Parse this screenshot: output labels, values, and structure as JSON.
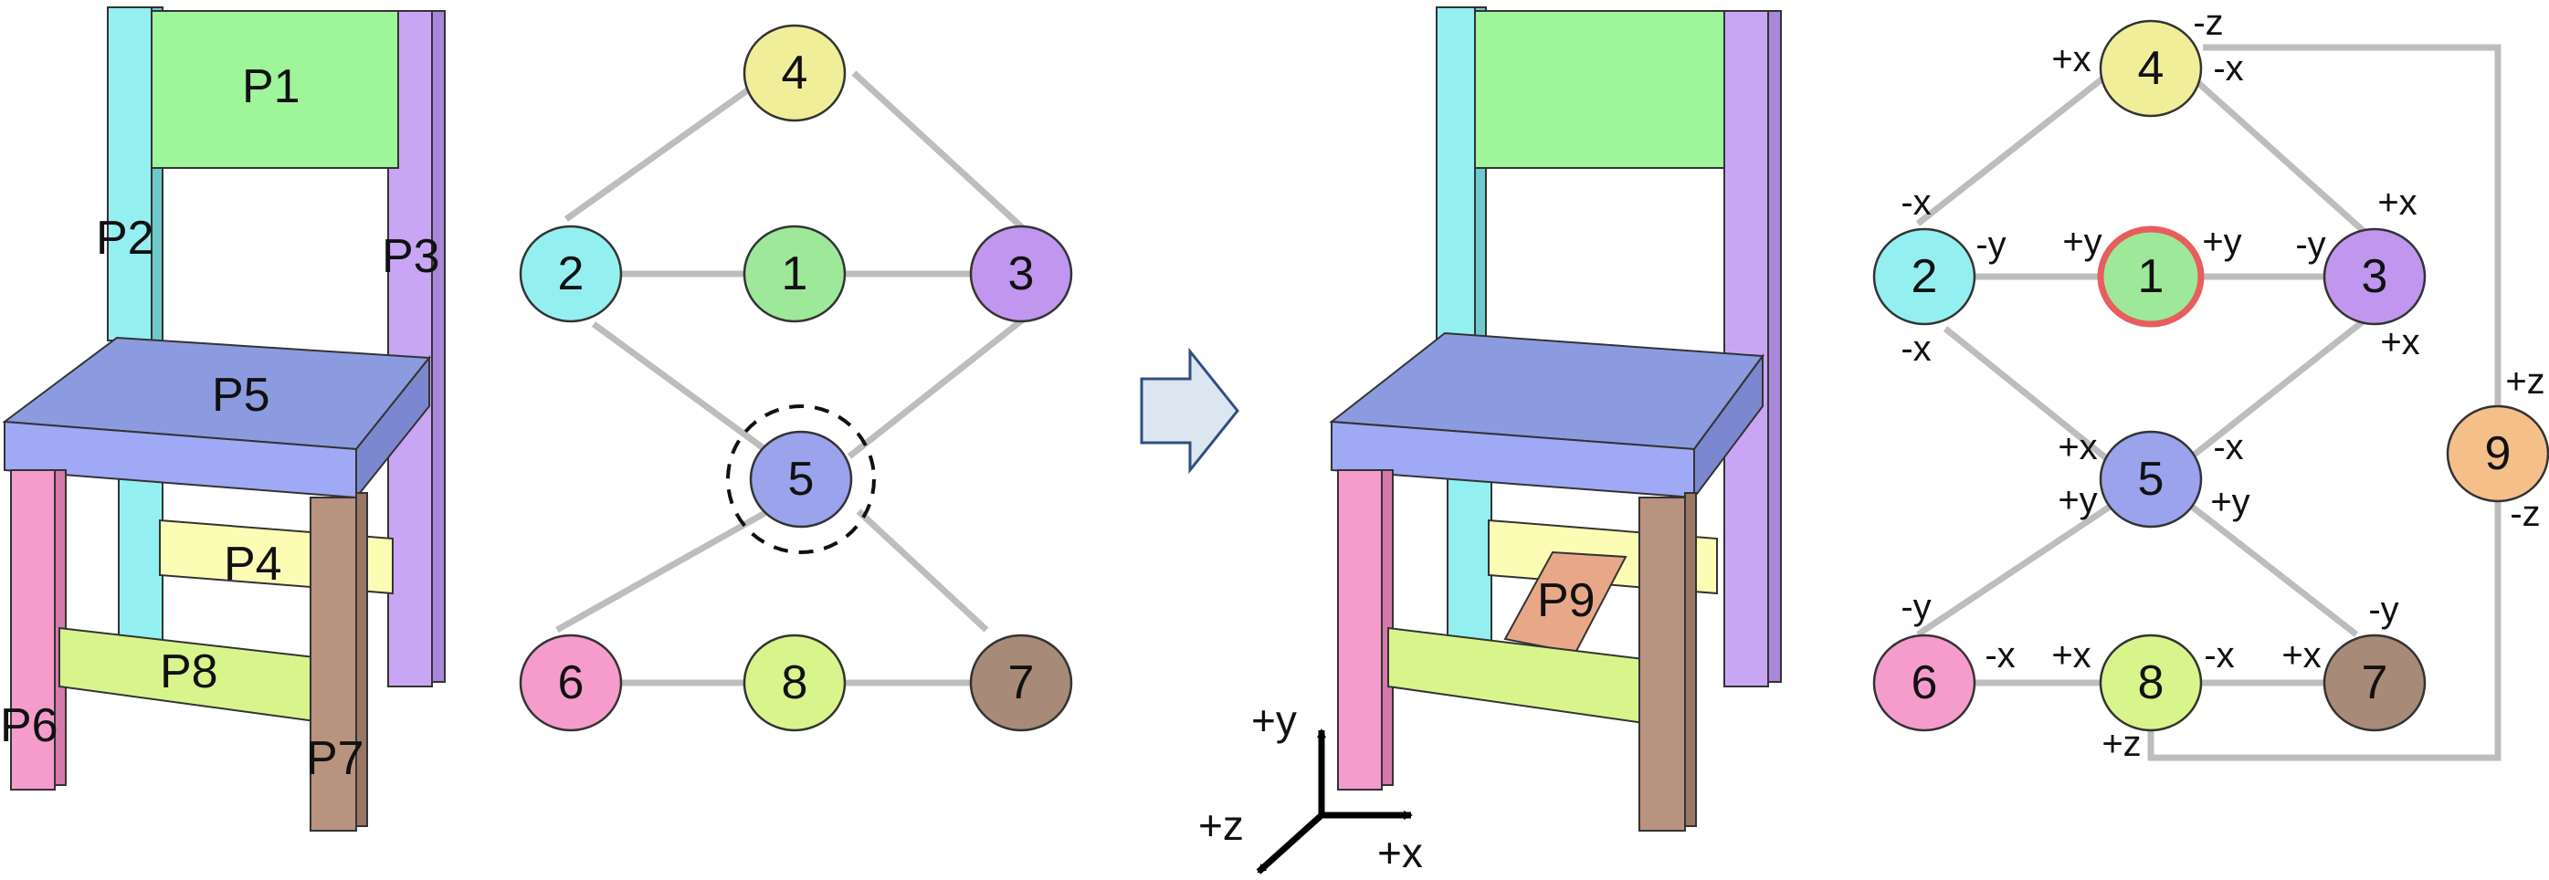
{
  "panel_original_chair": {
    "part_labels": [
      "P1",
      "P2",
      "P3",
      "P4",
      "P5",
      "P6",
      "P7",
      "P8"
    ]
  },
  "panel_modified_chair": {
    "part_labels": [
      "P9"
    ]
  },
  "graph_original": {
    "nodes": [
      "4",
      "2",
      "1",
      "3",
      "5",
      "6",
      "8",
      "7"
    ]
  },
  "graph_modified": {
    "nodes": [
      "4",
      "2",
      "1",
      "3",
      "5",
      "6",
      "8",
      "7",
      "9"
    ],
    "port_labels": {
      "n4_left": "+x",
      "n4_top": "-z",
      "n4_right": "-x",
      "n2_top": "-x",
      "n2_right": "-y",
      "n2_bottom": "-x",
      "n1_left": "+y",
      "n1_right": "+y",
      "n3_left": "-y",
      "n3_top": "+x",
      "n3_bottom": "+x",
      "n5_tl": "+x",
      "n5_tr": "-x",
      "n5_bl": "+y",
      "n5_br": "+y",
      "n6_top": "-y",
      "n6_right": "-x",
      "n8_left": "+x",
      "n8_right": "-x",
      "n8_bottom": "+z",
      "n7_left": "+x",
      "n7_top": "-y",
      "n9_top": "+z",
      "n9_bottom": "-z"
    }
  },
  "axes": {
    "y_label": "+y",
    "x_label": "+x",
    "z_label": "+z"
  },
  "colors": {
    "p1": "#9ef59a",
    "p2": "#94eff0",
    "p3": "#c9a6f5",
    "p4": "#fdfcb5",
    "p5": "#95a2f0",
    "p6": "#f59ccc",
    "p7": "#b89380",
    "p8": "#d8f58c",
    "p9": "#f5bf8a",
    "edge": "#bdbdbd",
    "highlight": "#e85d5d",
    "arrow": "#dce6f1"
  }
}
